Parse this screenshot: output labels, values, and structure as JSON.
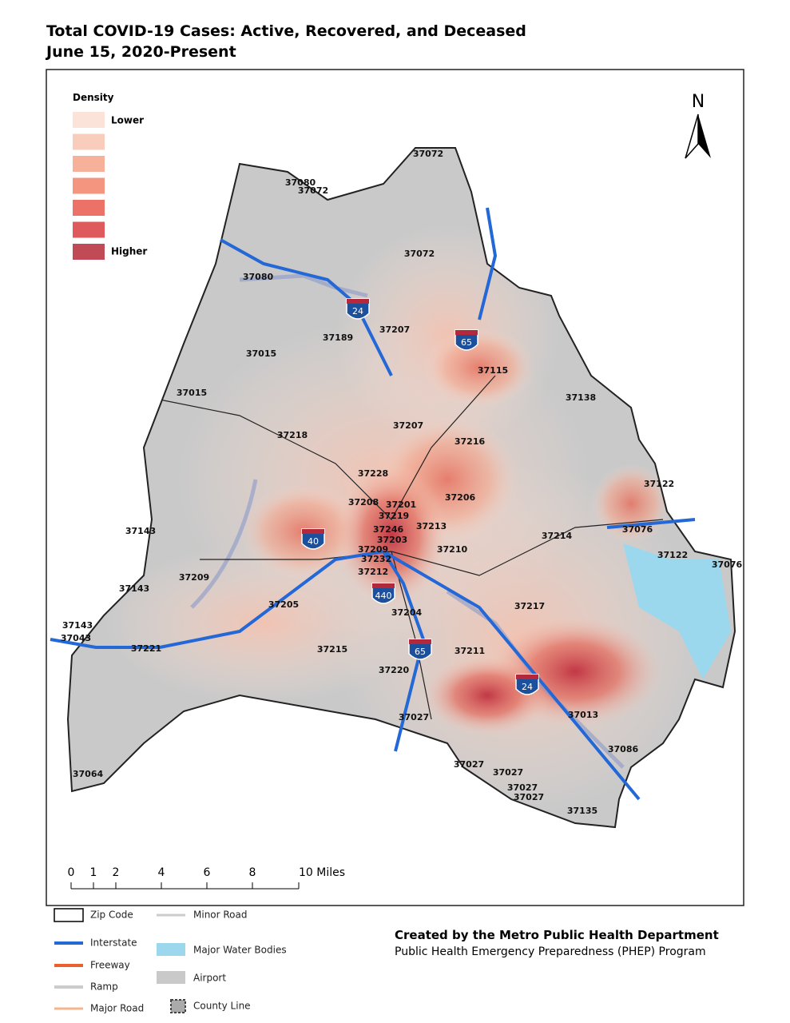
{
  "header": {
    "title_line1": "Total COVID-19 Cases: Active, Recovered, and Deceased",
    "title_line2": "June 15, 2020-Present"
  },
  "density_legend": {
    "title": "Density",
    "low": "Lower",
    "high": "Higher"
  },
  "north_arrow": "N",
  "zip_labels": [
    "37072",
    "37080",
    "37072",
    "37072",
    "37080",
    "37189",
    "37207",
    "37015",
    "37015",
    "37115",
    "37138",
    "37207",
    "37218",
    "37216",
    "37228",
    "37122",
    "37206",
    "37208",
    "37201",
    "37219",
    "37213",
    "37246",
    "37214",
    "37076",
    "37143",
    "37203",
    "37122",
    "37076",
    "37210",
    "37209",
    "37232",
    "37209",
    "37212",
    "37143",
    "37205",
    "37217",
    "37204",
    "37143",
    "37043",
    "37215",
    "37211",
    "37221",
    "37220",
    "37013",
    "37027",
    "37086",
    "37027",
    "37027",
    "37064",
    "37027",
    "37027",
    "37135"
  ],
  "shields": [
    "24",
    "65",
    "40",
    "440",
    "65",
    "24"
  ],
  "scale_bar": [
    "0",
    "1",
    "2",
    "4",
    "6",
    "8",
    "10 Miles"
  ],
  "legend": {
    "zip_code": "Zip Code",
    "minor_road": "Minor Road",
    "interstate": "Interstate",
    "water": "Major Water Bodies",
    "freeway": "Freeway",
    "airport": "Airport",
    "ramp": "Ramp",
    "county_line": "County Line",
    "major_road": "Major Road"
  },
  "credits": {
    "line1": "Created by the Metro Public Health Department",
    "line2": "Public Health Emergency Preparedness (PHEP) Program"
  }
}
